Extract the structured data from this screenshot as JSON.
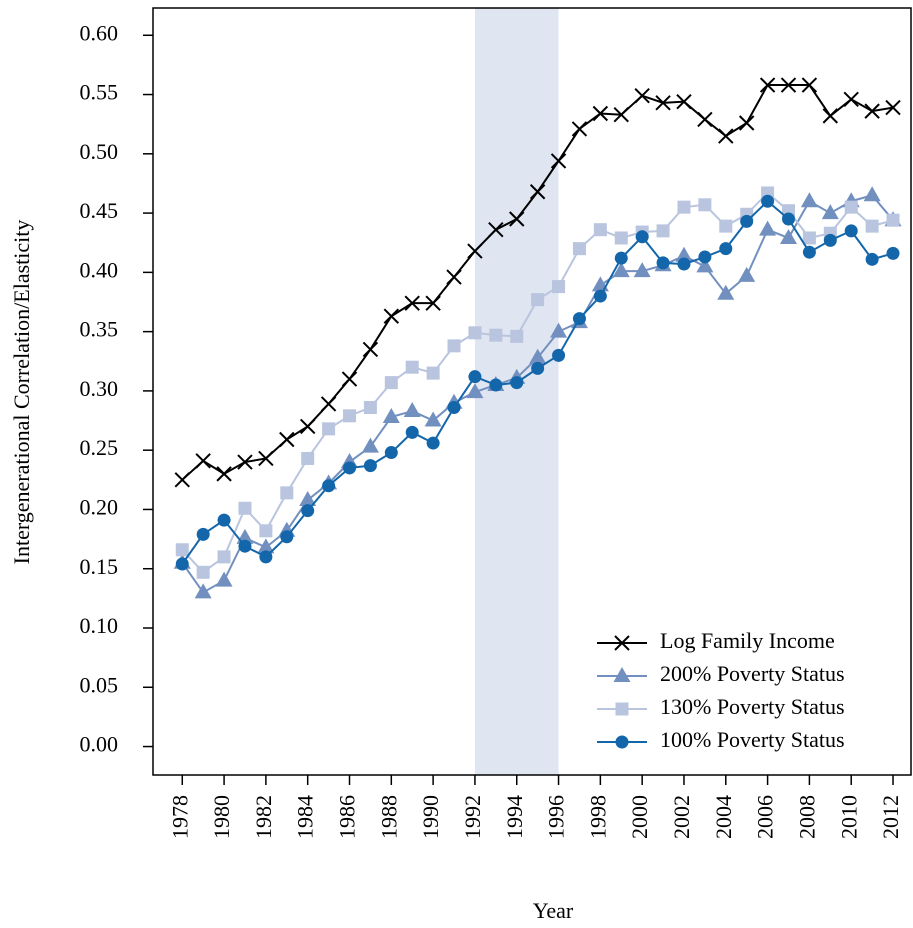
{
  "chart_data": {
    "type": "line",
    "xlabel": "Year",
    "ylabel": "Intergenerational Correlation/Elasticity",
    "x": [
      1978,
      1979,
      1980,
      1981,
      1982,
      1983,
      1984,
      1985,
      1986,
      1987,
      1988,
      1989,
      1990,
      1991,
      1992,
      1993,
      1994,
      1995,
      1996,
      1997,
      1998,
      1999,
      2000,
      2001,
      2002,
      2003,
      2004,
      2005,
      2006,
      2007,
      2008,
      2009,
      2010,
      2011,
      2012
    ],
    "series": [
      {
        "name": "Log Family Income",
        "color": "#000000",
        "marker": "cross",
        "values": [
          0.225,
          0.241,
          0.23,
          0.24,
          0.243,
          0.259,
          0.27,
          0.289,
          0.31,
          0.335,
          0.363,
          0.374,
          0.374,
          0.396,
          0.418,
          0.436,
          0.445,
          0.468,
          0.494,
          0.521,
          0.534,
          0.533,
          0.549,
          0.543,
          0.544,
          0.529,
          0.515,
          0.526,
          0.558,
          0.558,
          0.558,
          0.532,
          0.546,
          0.536,
          0.539
        ]
      },
      {
        "name": "200% Poverty Status",
        "color": "#7290bf",
        "marker": "triangle",
        "values": [
          0.155,
          0.13,
          0.14,
          0.176,
          0.168,
          0.182,
          0.208,
          0.222,
          0.24,
          0.253,
          0.278,
          0.283,
          0.275,
          0.29,
          0.299,
          0.305,
          0.311,
          0.328,
          0.35,
          0.358,
          0.389,
          0.401,
          0.401,
          0.406,
          0.414,
          0.405,
          0.382,
          0.397,
          0.436,
          0.429,
          0.46,
          0.45,
          0.46,
          0.465,
          0.444
        ]
      },
      {
        "name": "130% Poverty Status",
        "color": "#b9c4de",
        "marker": "square",
        "values": [
          0.166,
          0.147,
          0.16,
          0.201,
          0.182,
          0.214,
          0.243,
          0.268,
          0.279,
          0.286,
          0.307,
          0.32,
          0.315,
          0.338,
          0.349,
          0.347,
          0.346,
          0.377,
          0.388,
          0.42,
          0.436,
          0.429,
          0.434,
          0.435,
          0.455,
          0.457,
          0.439,
          0.449,
          0.467,
          0.452,
          0.429,
          0.433,
          0.455,
          0.439,
          0.444
        ]
      },
      {
        "name": "100% Poverty Status",
        "color": "#1466ab",
        "marker": "circle",
        "values": [
          0.154,
          0.179,
          0.191,
          0.169,
          0.16,
          0.177,
          0.199,
          0.22,
          0.235,
          0.237,
          0.248,
          0.265,
          0.256,
          0.286,
          0.312,
          0.305,
          0.307,
          0.319,
          0.33,
          0.361,
          0.38,
          0.412,
          0.43,
          0.408,
          0.407,
          0.413,
          0.42,
          0.443,
          0.46,
          0.445,
          0.417,
          0.427,
          0.435,
          0.411,
          0.416
        ]
      }
    ],
    "xlim": [
      1976.6,
      2012.86
    ],
    "ylim": [
      -0.024,
      0.623
    ],
    "xticks": [
      1978,
      1980,
      1982,
      1984,
      1986,
      1988,
      1990,
      1992,
      1994,
      1996,
      1998,
      2000,
      2002,
      2004,
      2006,
      2008,
      2010,
      2012
    ],
    "yticks": [
      {
        "value": 0,
        "label": "0.00"
      },
      {
        "value": 0.05,
        "label": "0.05"
      },
      {
        "value": 0.1,
        "label": "0.10"
      },
      {
        "value": 0.15,
        "label": "0.15"
      },
      {
        "value": 0.2,
        "label": "0.20"
      },
      {
        "value": 0.25,
        "label": "0.25"
      },
      {
        "value": 0.3,
        "label": "0.30"
      },
      {
        "value": 0.35,
        "label": "0.35"
      },
      {
        "value": 0.4,
        "label": "0.40"
      },
      {
        "value": 0.45,
        "label": "0.45"
      },
      {
        "value": 0.5,
        "label": "0.50"
      },
      {
        "value": 0.55,
        "label": "0.55"
      },
      {
        "value": 0.6,
        "label": "0.60"
      }
    ],
    "shade": [
      1992,
      1996
    ],
    "shade_color": "#dfe5f1",
    "legend": "bottom-right"
  }
}
